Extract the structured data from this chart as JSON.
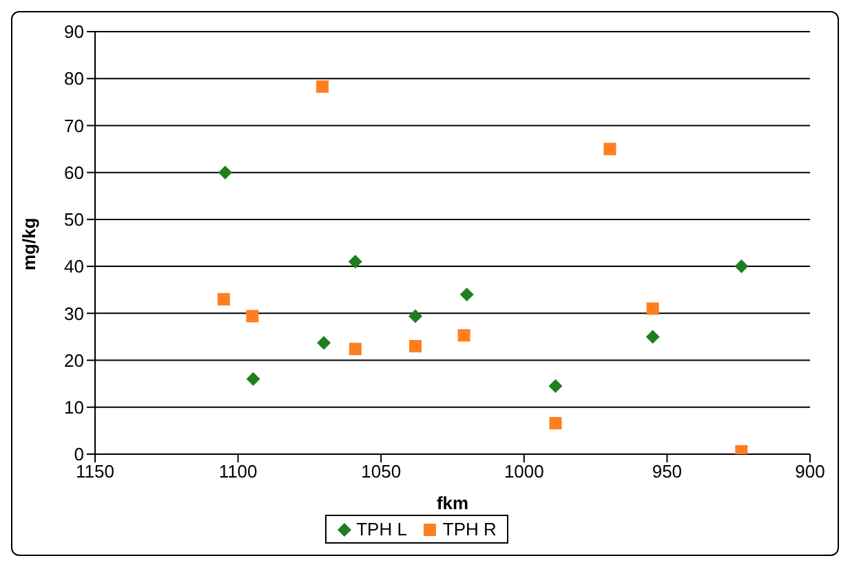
{
  "chart_data": {
    "type": "scatter",
    "xlabel": "fkm",
    "ylabel": "mg/kg",
    "xlim": [
      1150,
      900
    ],
    "xticks": [
      1150,
      1100,
      1050,
      1000,
      950,
      900
    ],
    "ylim": [
      0,
      90
    ],
    "yticks": [
      0,
      10,
      20,
      30,
      40,
      50,
      60,
      70,
      80,
      90
    ],
    "grid": "y",
    "legend": "bottom",
    "series": [
      {
        "name": "TPH L",
        "color": "#1f7f1f",
        "marker": "diamond",
        "x": [
          1104.5,
          1094.7,
          1070,
          1059,
          1038,
          1020,
          989,
          955,
          924
        ],
        "values": [
          60,
          16,
          23.7,
          41,
          29.4,
          34,
          14.5,
          25,
          40
        ]
      },
      {
        "name": "TPH R",
        "color": "#ff7f1f",
        "marker": "square",
        "x": [
          1105,
          1095,
          1070.5,
          1059,
          1038,
          1021,
          989,
          970,
          955,
          924
        ],
        "values": [
          33,
          29.4,
          78.3,
          22.4,
          23,
          25.3,
          6.6,
          65,
          31,
          0.6
        ]
      }
    ]
  }
}
